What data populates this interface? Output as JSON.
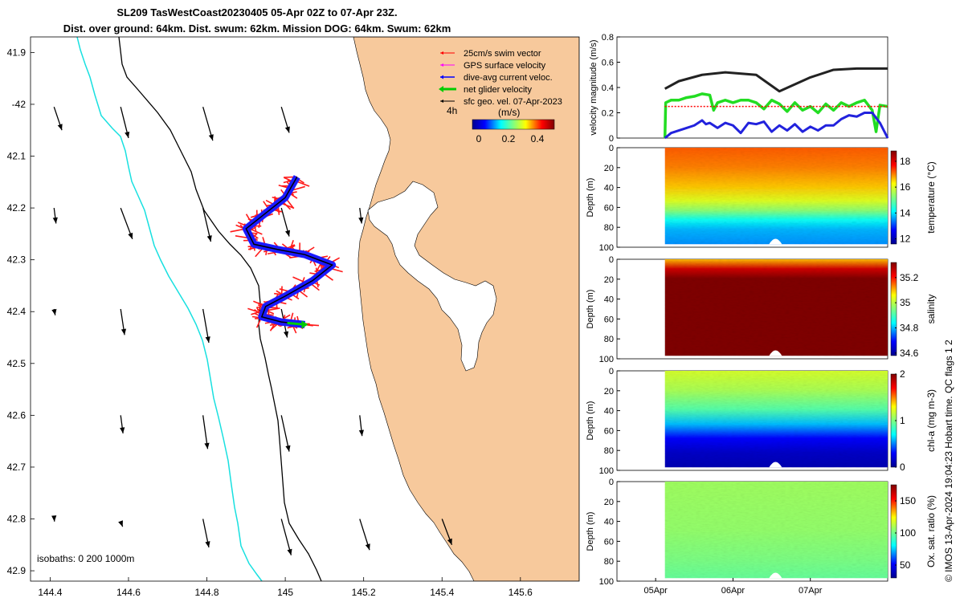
{
  "title_line1": "SL209 TasWestCoast20230405 05-Apr 02Z to 07-Apr 23Z.",
  "title_line2": "Dist. over ground: 64km. Dist. swum: 62km. Mission DOG: 64km. Swum: 62km",
  "legend": {
    "items": [
      {
        "label": "25cm/s swim vector",
        "color": "#ff0000"
      },
      {
        "label": "GPS surface velocity",
        "color": "#ff00ff"
      },
      {
        "label": "dive-avg current veloc.",
        "color": "#0000ff"
      },
      {
        "label": "net glider velocity",
        "color": "#00cc00"
      },
      {
        "label": "sfc geo. vel. 07-Apr-2023",
        "color": "#000000"
      }
    ],
    "interval": "4h",
    "colorbar_title": "(m/s)",
    "colorbar_ticks": [
      "0",
      "0.2",
      "0.4"
    ]
  },
  "isobaths_label": "isobaths: 0   200  1000m",
  "copyright": "© IMOS 13-Apr-2024 19:04:23 Hobart time. QC flags 1  2",
  "colors": {
    "land": "#f7c99c",
    "isobath200": "#000000",
    "isobath1000": "#00dddd"
  },
  "chart_data": [
    {
      "type": "scatter",
      "name": "map",
      "xlim": [
        144.35,
        145.75
      ],
      "ylim": [
        -42.92,
        -41.87
      ],
      "xticks": [
        144.4,
        144.6,
        144.8,
        145,
        145.2,
        145.4,
        145.6
      ],
      "xtick_labels": [
        "144.4",
        "144.6",
        "144.8",
        "145",
        "145.2",
        "145.4",
        "145.6"
      ],
      "yticks": [
        -41.9,
        -42.0,
        -42.1,
        -42.2,
        -42.3,
        -42.4,
        -42.5,
        -42.6,
        -42.7,
        -42.8,
        -42.9
      ],
      "ytick_labels": [
        "41.9",
        "-42",
        "42.1",
        "42.2",
        "42.3",
        "42.4",
        "42.5",
        "42.6",
        "42.7",
        "42.8",
        "42.9"
      ],
      "track": [
        [
          145.03,
          -42.14
        ],
        [
          145.0,
          -42.18
        ],
        [
          144.95,
          -42.21
        ],
        [
          144.9,
          -42.24
        ],
        [
          144.92,
          -42.27
        ],
        [
          144.98,
          -42.28
        ],
        [
          145.05,
          -42.29
        ],
        [
          145.12,
          -42.31
        ],
        [
          145.07,
          -42.34
        ],
        [
          145.0,
          -42.37
        ],
        [
          144.95,
          -42.39
        ],
        [
          144.94,
          -42.41
        ],
        [
          144.99,
          -42.42
        ],
        [
          145.05,
          -42.425
        ]
      ],
      "geo_vectors": [
        [
          144.41,
          -42.005,
          0.02,
          -0.045
        ],
        [
          144.58,
          -42.005,
          0.02,
          -0.06
        ],
        [
          144.79,
          -42.005,
          0.025,
          -0.065
        ],
        [
          144.99,
          -42.005,
          0.02,
          -0.05
        ],
        [
          144.41,
          -42.2,
          0.005,
          -0.03
        ],
        [
          144.58,
          -42.2,
          0.03,
          -0.06
        ],
        [
          144.79,
          -42.2,
          0.02,
          -0.065
        ],
        [
          144.99,
          -42.2,
          0.02,
          -0.055
        ],
        [
          145.19,
          -42.2,
          0.005,
          -0.03
        ],
        [
          144.41,
          -42.395,
          0.003,
          -0.012
        ],
        [
          144.58,
          -42.395,
          0.01,
          -0.05
        ],
        [
          144.79,
          -42.395,
          0.015,
          -0.065
        ],
        [
          144.99,
          -42.395,
          0.015,
          -0.055
        ],
        [
          144.58,
          -42.6,
          0.006,
          -0.035
        ],
        [
          144.79,
          -42.6,
          0.012,
          -0.065
        ],
        [
          144.99,
          -42.6,
          0.02,
          -0.07
        ],
        [
          145.19,
          -42.6,
          0.006,
          -0.04
        ],
        [
          144.41,
          -42.795,
          0.001,
          -0.01
        ],
        [
          144.58,
          -42.805,
          0.005,
          -0.01
        ],
        [
          144.79,
          -42.8,
          0.015,
          -0.055
        ],
        [
          144.99,
          -42.8,
          0.025,
          -0.07
        ],
        [
          145.19,
          -42.8,
          0.025,
          -0.06
        ],
        [
          145.4,
          -42.8,
          0.025,
          -0.05
        ]
      ]
    },
    {
      "type": "line",
      "name": "velocity",
      "ylabel": "velocity magnitude (m/s)",
      "ylim": [
        0,
        0.8
      ],
      "yticks": [
        0,
        0.2,
        0.4,
        0.6,
        0.8
      ],
      "ytick_labels": [
        "0",
        "0.2",
        "0.4",
        "0.6",
        "0.8"
      ],
      "xlim": [
        4.5,
        8.0
      ],
      "series": [
        {
          "name": "sfc geo. vel.",
          "color": "#222222",
          "x": [
            5.12,
            5.3,
            5.6,
            5.9,
            6.3,
            6.6,
            7.0,
            7.3,
            7.6,
            8.0
          ],
          "y": [
            0.39,
            0.45,
            0.5,
            0.52,
            0.5,
            0.37,
            0.48,
            0.54,
            0.55,
            0.55
          ]
        },
        {
          "name": "net glider velocity",
          "color": "#22dd22",
          "x": [
            5.12,
            5.13,
            5.2,
            5.3,
            5.4,
            5.5,
            5.6,
            5.7,
            5.75,
            5.8,
            5.9,
            6.0,
            6.1,
            6.2,
            6.3,
            6.4,
            6.5,
            6.6,
            6.7,
            6.8,
            6.9,
            7.0,
            7.1,
            7.2,
            7.3,
            7.4,
            7.5,
            7.6,
            7.7,
            7.8,
            7.85,
            7.9,
            8.0
          ],
          "y": [
            0.0,
            0.28,
            0.3,
            0.3,
            0.32,
            0.33,
            0.35,
            0.34,
            0.22,
            0.28,
            0.3,
            0.28,
            0.3,
            0.3,
            0.28,
            0.23,
            0.3,
            0.27,
            0.21,
            0.28,
            0.22,
            0.25,
            0.2,
            0.27,
            0.22,
            0.28,
            0.25,
            0.28,
            0.3,
            0.22,
            0.05,
            0.26,
            0.25
          ]
        },
        {
          "name": "dive-avg current veloc.",
          "color": "#2222dd",
          "x": [
            5.12,
            5.2,
            5.3,
            5.4,
            5.5,
            5.6,
            5.65,
            5.7,
            5.8,
            5.9,
            6.0,
            6.1,
            6.2,
            6.3,
            6.4,
            6.5,
            6.6,
            6.7,
            6.8,
            6.9,
            7.0,
            7.1,
            7.2,
            7.3,
            7.4,
            7.5,
            7.6,
            7.7,
            7.8,
            7.9,
            8.0
          ],
          "y": [
            0.0,
            0.04,
            0.06,
            0.08,
            0.1,
            0.14,
            0.11,
            0.12,
            0.08,
            0.12,
            0.1,
            0.04,
            0.12,
            0.11,
            0.13,
            0.05,
            0.1,
            0.06,
            0.11,
            0.05,
            0.09,
            0.06,
            0.1,
            0.1,
            0.15,
            0.18,
            0.17,
            0.2,
            0.2,
            0.12,
            0.0
          ]
        },
        {
          "name": "swim vector (dotted)",
          "color": "#ff0000",
          "x": [
            5.12,
            8.0
          ],
          "y": [
            0.25,
            0.25
          ]
        }
      ]
    },
    {
      "type": "heatmap",
      "name": "temperature",
      "cblabel": "temperature (°C)",
      "clim": [
        11.6,
        18.8
      ],
      "cbticks": [
        12,
        14,
        16,
        18
      ],
      "cbtick_labels": [
        "12",
        "14",
        "16",
        "18"
      ],
      "ylabel": "Depth (m)",
      "ylim": [
        0,
        100
      ],
      "yticks": [
        0,
        20,
        40,
        60,
        80,
        100
      ],
      "ytick_labels": [
        "0",
        "20",
        "40",
        "60",
        "80",
        "100"
      ],
      "x_range": [
        5.12,
        8.0
      ],
      "profile_depths": [
        0,
        20,
        40,
        55,
        65,
        75,
        85,
        100
      ],
      "profile_values": [
        17.2,
        17.0,
        16.6,
        16.0,
        15.3,
        14.2,
        13.7,
        13.5
      ]
    },
    {
      "type": "heatmap",
      "name": "salinity",
      "cblabel": "salinity",
      "clim": [
        34.58,
        35.32
      ],
      "cbticks": [
        34.6,
        34.8,
        35,
        35.2
      ],
      "cbtick_labels": [
        "34.6",
        "34.8",
        "35",
        "35.2"
      ],
      "ylabel": "Depth (m)",
      "ylim": [
        0,
        100
      ],
      "yticks": [
        0,
        20,
        40,
        60,
        80,
        100
      ],
      "ytick_labels": [
        "0",
        "20",
        "40",
        "60",
        "80",
        "100"
      ],
      "x_range": [
        5.12,
        8.0
      ],
      "profile_depths": [
        0,
        10,
        20,
        100
      ],
      "profile_values": [
        35.1,
        35.25,
        35.32,
        35.32
      ]
    },
    {
      "type": "heatmap",
      "name": "chla",
      "cblabel": "chl-a (mg m-3)",
      "clim": [
        0,
        2
      ],
      "cbticks": [
        0,
        1,
        2
      ],
      "cbtick_labels": [
        "0",
        "1",
        "2"
      ],
      "ylabel": "Depth (m)",
      "ylim": [
        0,
        100
      ],
      "yticks": [
        0,
        20,
        40,
        60,
        80,
        100
      ],
      "ytick_labels": [
        "0",
        "20",
        "40",
        "60",
        "80",
        "100"
      ],
      "x_range": [
        5.12,
        8.0
      ],
      "profile_depths": [
        0,
        20,
        40,
        55,
        70,
        85,
        100
      ],
      "profile_values": [
        1.2,
        1.1,
        0.9,
        0.6,
        0.3,
        0.15,
        0.1
      ]
    },
    {
      "type": "heatmap",
      "name": "oxygen",
      "cblabel": "Ox. sat. ratio (%)",
      "clim": [
        30,
        175
      ],
      "cbticks": [
        50,
        100,
        150
      ],
      "cbtick_labels": [
        "50",
        "100",
        "150"
      ],
      "ylabel": "Depth (m)",
      "ylim": [
        0,
        100
      ],
      "yticks": [
        0,
        20,
        40,
        60,
        80,
        100
      ],
      "ytick_labels": [
        "0",
        "20",
        "40",
        "60",
        "80",
        "100"
      ],
      "x_range": [
        5.12,
        8.0
      ],
      "profile_depths": [
        0,
        50,
        80,
        100
      ],
      "profile_values": [
        108,
        106,
        102,
        98
      ],
      "xticks": [
        5,
        6,
        7
      ],
      "xtick_labels": [
        "05Apr",
        "06Apr",
        "07Apr"
      ]
    }
  ]
}
